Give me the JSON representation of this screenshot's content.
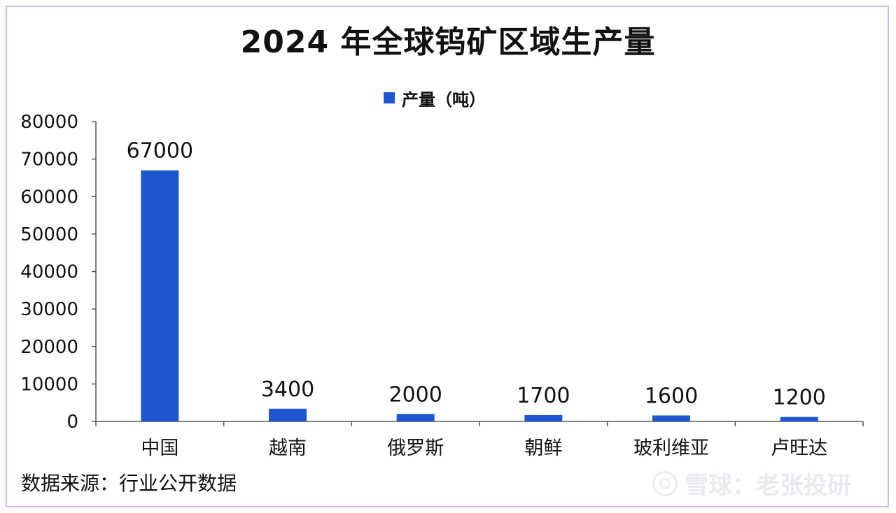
{
  "title": "2024 年全球钨矿区域生产量",
  "legend": {
    "label": "产量（吨）"
  },
  "source": "数据来源：行业公开数据",
  "watermark": "雪球：老张投研",
  "colors": {
    "bar": "#1f56d1",
    "axis": "#555555",
    "text": "#111111",
    "border": "#d8b6ec"
  },
  "chart_data": {
    "type": "bar",
    "title": "2024 年全球钨矿区域生产量",
    "categories": [
      "中国",
      "越南",
      "俄罗斯",
      "朝鲜",
      "玻利维亚",
      "卢旺达"
    ],
    "series": [
      {
        "name": "产量（吨）",
        "values": [
          67000,
          3400,
          2000,
          1700,
          1600,
          1200
        ]
      }
    ],
    "data_labels": [
      "67000",
      "3400",
      "2000",
      "1700",
      "1600",
      "1200"
    ],
    "ylim": [
      0,
      80000
    ],
    "y_ticks": [
      "0",
      "10000",
      "20000",
      "30000",
      "40000",
      "50000",
      "60000",
      "70000",
      "80000"
    ],
    "grid": false,
    "legend_position": "top-center"
  }
}
